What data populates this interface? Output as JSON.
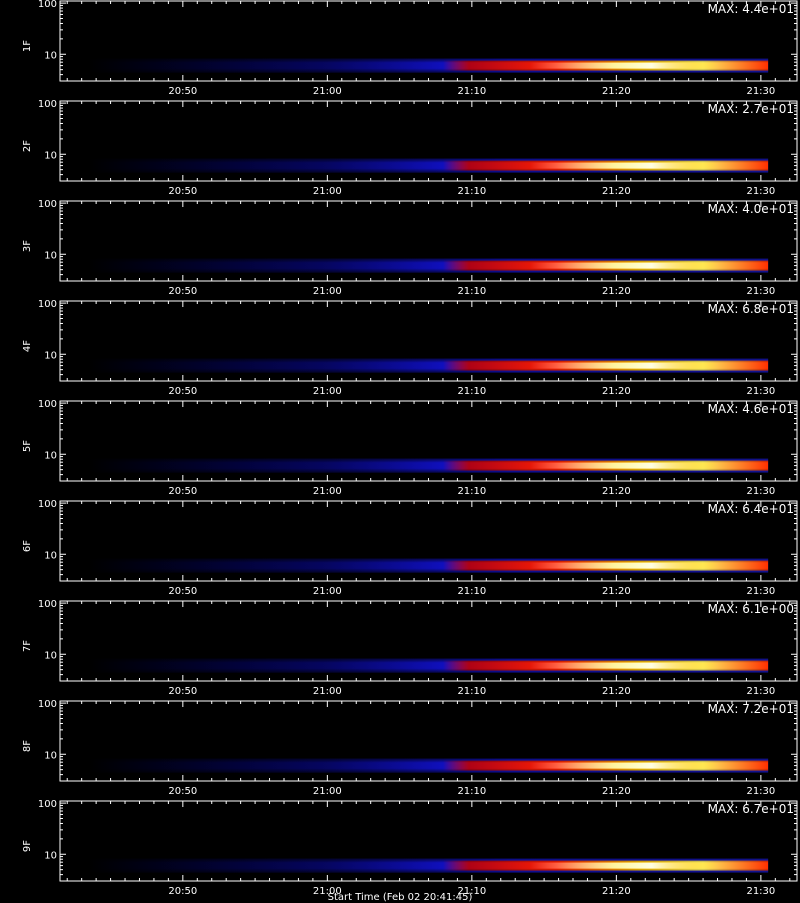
{
  "chart_data": {
    "type": "heatmap",
    "time_ticks": [
      "20:50",
      "21:00",
      "21:10",
      "21:20",
      "21:30"
    ],
    "time_tick_minutes_after_2040": [
      10,
      20,
      30,
      40,
      50
    ],
    "time_range_minutes_after_2040": [
      1.5,
      52.5
    ],
    "data_end_minutes_after_2040": [
      50.5
    ],
    "y_scale": "log",
    "y_ticks": [
      "10",
      "100"
    ],
    "y_range": [
      3,
      110
    ],
    "colormap": [
      "#000000",
      "#1010ff",
      "#ff0000",
      "#ffd000",
      "#ffffff"
    ],
    "panels": [
      {
        "label": "1F",
        "max_text": "MAX: 4.4e+01"
      },
      {
        "label": "2F",
        "max_text": "MAX: 2.7e+01"
      },
      {
        "label": "3F",
        "max_text": "MAX: 4.0e+01"
      },
      {
        "label": "4F",
        "max_text": "MAX: 6.8e+01"
      },
      {
        "label": "5F",
        "max_text": "MAX: 4.6e+01"
      },
      {
        "label": "6F",
        "max_text": "MAX: 6.4e+01"
      },
      {
        "label": "7F",
        "max_text": "MAX: 6.1e+00"
      },
      {
        "label": "8F",
        "max_text": "MAX: 7.2e+01"
      },
      {
        "label": "9F",
        "max_text": "MAX: 6.7e+01"
      }
    ]
  },
  "footer": {
    "start_time_text": "Start Time (Feb 02 20:41:45)"
  }
}
